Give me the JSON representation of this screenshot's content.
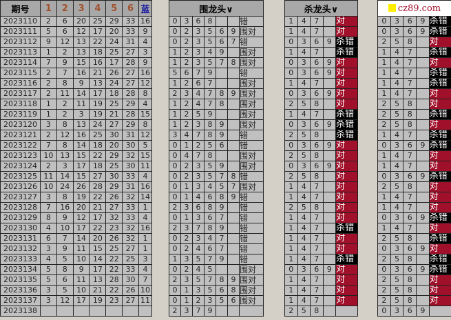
{
  "headers": {
    "issue": "期号",
    "n1": "1",
    "n2": "2",
    "n3": "3",
    "n4": "4",
    "n5": "5",
    "n6": "6",
    "blue": "蓝",
    "wei": "围龙头∨",
    "sha": "杀龙头∨",
    "logo": "cz89.com"
  },
  "colors": {
    "hit": "#a0102a",
    "miss": "#000000",
    "red_num": "#a0522d",
    "blue_num": "#1a1aa0"
  },
  "draws": [
    [
      "2023110",
      "2",
      "6",
      "20",
      "25",
      "29",
      "33",
      "16"
    ],
    [
      "2023111",
      "5",
      "6",
      "12",
      "17",
      "20",
      "33",
      "9"
    ],
    [
      "2023112",
      "9",
      "12",
      "13",
      "22",
      "24",
      "31",
      "4"
    ],
    [
      "2023113",
      "1",
      "2",
      "13",
      "18",
      "25",
      "27",
      "3"
    ],
    [
      "2023114",
      "7",
      "9",
      "15",
      "16",
      "17",
      "28",
      "9"
    ],
    [
      "2023115",
      "2",
      "7",
      "16",
      "21",
      "26",
      "27",
      "16"
    ],
    [
      "2023116",
      "2",
      "8",
      "9",
      "13",
      "24",
      "27",
      "12"
    ],
    [
      "2023117",
      "2",
      "11",
      "14",
      "17",
      "18",
      "28",
      "8"
    ],
    [
      "2023118",
      "1",
      "2",
      "11",
      "19",
      "25",
      "29",
      "4"
    ],
    [
      "2023119",
      "1",
      "2",
      "3",
      "19",
      "21",
      "28",
      "15"
    ],
    [
      "2023120",
      "3",
      "8",
      "13",
      "24",
      "27",
      "29",
      "8"
    ],
    [
      "2023121",
      "2",
      "12",
      "16",
      "25",
      "30",
      "31",
      "12"
    ],
    [
      "2023122",
      "7",
      "8",
      "14",
      "18",
      "20",
      "30",
      "5"
    ],
    [
      "2023123",
      "10",
      "13",
      "15",
      "22",
      "29",
      "32",
      "15"
    ],
    [
      "2023124",
      "2",
      "3",
      "17",
      "18",
      "25",
      "30",
      "11"
    ],
    [
      "2023125",
      "11",
      "14",
      "15",
      "27",
      "30",
      "33",
      "4"
    ],
    [
      "2023126",
      "10",
      "24",
      "26",
      "28",
      "29",
      "31",
      "16"
    ],
    [
      "2023127",
      "3",
      "8",
      "19",
      "22",
      "26",
      "32",
      "14"
    ],
    [
      "2023128",
      "7",
      "16",
      "20",
      "21",
      "27",
      "33",
      "1"
    ],
    [
      "2023129",
      "8",
      "9",
      "12",
      "17",
      "32",
      "33",
      "4"
    ],
    [
      "2023130",
      "4",
      "10",
      "17",
      "22",
      "23",
      "32",
      "16"
    ],
    [
      "2023131",
      "6",
      "7",
      "14",
      "20",
      "26",
      "32",
      "1"
    ],
    [
      "2023132",
      "3",
      "9",
      "11",
      "15",
      "25",
      "27",
      "1"
    ],
    [
      "2023133",
      "4",
      "5",
      "10",
      "14",
      "22",
      "25",
      "3"
    ],
    [
      "2023134",
      "5",
      "8",
      "9",
      "17",
      "22",
      "33",
      "4"
    ],
    [
      "2023135",
      "5",
      "6",
      "11",
      "13",
      "28",
      "30",
      "7"
    ],
    [
      "2023136",
      "3",
      "5",
      "10",
      "21",
      "22",
      "26",
      "10"
    ],
    [
      "2023137",
      "3",
      "12",
      "17",
      "19",
      "23",
      "27",
      "11"
    ],
    [
      "2023138",
      "",
      "",
      "",
      "",
      "",
      "",
      ""
    ]
  ],
  "wei": [
    [
      [
        "0",
        "3",
        "6",
        "8",
        "",
        ""
      ],
      "错"
    ],
    [
      [
        "0",
        "2",
        "3",
        "5",
        "6",
        "9"
      ],
      "围对"
    ],
    [
      [
        "0",
        "2",
        "3",
        "5",
        "6",
        "7"
      ],
      "错"
    ],
    [
      [
        "1",
        "2",
        "3",
        "4",
        "9",
        ""
      ],
      "围对"
    ],
    [
      [
        "1",
        "2",
        "3",
        "5",
        "7",
        "8"
      ],
      "围对"
    ],
    [
      [
        "5",
        "6",
        "7",
        "9",
        "",
        ""
      ],
      "错"
    ],
    [
      [
        "1",
        "2",
        "6",
        "7",
        "",
        ""
      ],
      "围对"
    ],
    [
      [
        "2",
        "3",
        "4",
        "7",
        "8",
        "9"
      ],
      "围对"
    ],
    [
      [
        "1",
        "2",
        "4",
        "7",
        "8",
        ""
      ],
      "围对"
    ],
    [
      [
        "1",
        "2",
        "5",
        "9",
        "",
        ""
      ],
      "围对"
    ],
    [
      [
        "1",
        "2",
        "3",
        "8",
        "9",
        ""
      ],
      "围对"
    ],
    [
      [
        "3",
        "4",
        "7",
        "8",
        "9",
        ""
      ],
      "错"
    ],
    [
      [
        "0",
        "1",
        "2",
        "5",
        "6",
        ""
      ],
      "错"
    ],
    [
      [
        "0",
        "4",
        "7",
        "8",
        "",
        ""
      ],
      "围对"
    ],
    [
      [
        "0",
        "2",
        "3",
        "5",
        "9",
        ""
      ],
      "围对"
    ],
    [
      [
        "0",
        "2",
        "3",
        "5",
        "7",
        "8"
      ],
      "错"
    ],
    [
      [
        "0",
        "1",
        "3",
        "4",
        "5",
        "7"
      ],
      "围对"
    ],
    [
      [
        "0",
        "1",
        "4",
        "6",
        "8",
        "9"
      ],
      "错"
    ],
    [
      [
        "2",
        "3",
        "6",
        "8",
        "9",
        ""
      ],
      "错"
    ],
    [
      [
        "0",
        "1",
        "3",
        "6",
        "7",
        ""
      ],
      "错"
    ],
    [
      [
        "2",
        "3",
        "7",
        "8",
        "9",
        ""
      ],
      "错"
    ],
    [
      [
        "0",
        "2",
        "3",
        "4",
        "7",
        ""
      ],
      "错"
    ],
    [
      [
        "0",
        "2",
        "4",
        "6",
        "7",
        ""
      ],
      "错"
    ],
    [
      [
        "1",
        "3",
        "5",
        "7",
        "9",
        ""
      ],
      "错"
    ],
    [
      [
        "0",
        "2",
        "4",
        "5",
        "",
        ""
      ],
      "围对"
    ],
    [
      [
        "2",
        "3",
        "5",
        "7",
        "8",
        "9"
      ],
      "围对"
    ],
    [
      [
        "0",
        "1",
        "3",
        "5",
        "6",
        "8"
      ],
      "围对"
    ],
    [
      [
        "0",
        "1",
        "2",
        "3",
        "5",
        "6"
      ],
      "围对"
    ],
    [
      [
        "2",
        "3",
        "7",
        "9",
        "",
        ""
      ],
      ""
    ]
  ],
  "sha": [
    [
      "147",
      "对"
    ],
    [
      "147",
      "对"
    ],
    [
      "0369",
      "杀错"
    ],
    [
      "147",
      "杀错"
    ],
    [
      "0369",
      "对"
    ],
    [
      "0369",
      "对"
    ],
    [
      "147",
      "对"
    ],
    [
      "0369",
      "对"
    ],
    [
      "258",
      "对"
    ],
    [
      "147",
      "杀错"
    ],
    [
      "0369",
      "杀错"
    ],
    [
      "258",
      "杀错"
    ],
    [
      "0369",
      "对"
    ],
    [
      "258",
      "对"
    ],
    [
      "0369",
      "对"
    ],
    [
      "258",
      "对"
    ],
    [
      "147",
      "对"
    ],
    [
      "147",
      "对"
    ],
    [
      "258",
      "对"
    ],
    [
      "147",
      "对"
    ],
    [
      "147",
      "杀错"
    ],
    [
      "147",
      "对"
    ],
    [
      "147",
      "对"
    ],
    [
      "147",
      "杀错"
    ],
    [
      "0369",
      "对"
    ],
    [
      "147",
      "对"
    ],
    [
      "147",
      "对"
    ],
    [
      "147",
      "对"
    ],
    [
      "258",
      ""
    ]
  ],
  "right": [
    [
      "0369",
      "杀错"
    ],
    [
      "0369",
      "杀错"
    ],
    [
      "258",
      "对"
    ],
    [
      "147",
      "杀错"
    ],
    [
      "147",
      "对"
    ],
    [
      "147",
      "杀错"
    ],
    [
      "147",
      "杀错"
    ],
    [
      "147",
      "对"
    ],
    [
      "258",
      "对"
    ],
    [
      "258",
      "杀错"
    ],
    [
      "258",
      "对"
    ],
    [
      "147",
      "杀错"
    ],
    [
      "0369",
      "杀错"
    ],
    [
      "147",
      "对"
    ],
    [
      "147",
      "对"
    ],
    [
      "0369",
      "杀错"
    ],
    [
      "258",
      "对"
    ],
    [
      "147",
      "对"
    ],
    [
      "147",
      "对"
    ],
    [
      "0369",
      "杀错"
    ],
    [
      "147",
      "对"
    ],
    [
      "258",
      "杀错"
    ],
    [
      "0369",
      "对"
    ],
    [
      "258",
      "杀错"
    ],
    [
      "0369",
      "杀错"
    ],
    [
      "258",
      "对"
    ],
    [
      "258",
      "对"
    ],
    [
      "258",
      "对"
    ],
    [
      "0369",
      ""
    ]
  ]
}
